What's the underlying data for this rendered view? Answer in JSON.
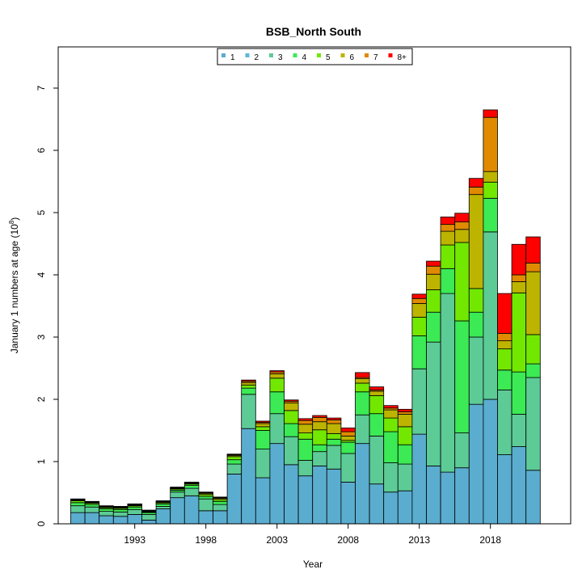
{
  "chart_data": {
    "type": "bar",
    "stacked": true,
    "title": "BSB_North South",
    "xlabel": "Year",
    "ylabel": "January 1 numbers at age (10",
    "ylabel_exponent": "8",
    "ylabel_suffix": ")",
    "ylim": [
      0,
      7.6
    ],
    "yticks": [
      0,
      1,
      2,
      3,
      4,
      5,
      6,
      7
    ],
    "xticks": [
      1993,
      1998,
      2003,
      2008,
      2013,
      2018
    ],
    "legend_position": "top",
    "x": [
      1989,
      1990,
      1991,
      1992,
      1993,
      1994,
      1995,
      1996,
      1997,
      1998,
      1999,
      2000,
      2001,
      2002,
      2003,
      2004,
      2005,
      2006,
      2007,
      2008,
      2009,
      2010,
      2011,
      2012,
      2013,
      2014,
      2015,
      2016,
      2017,
      2018,
      2019,
      2020,
      2021
    ],
    "series": [
      {
        "name": "1",
        "color": "#5AADCF",
        "values": [
          0.18,
          0.18,
          0.13,
          0.12,
          0.15,
          0.06,
          0.24,
          0.42,
          0.45,
          0.21,
          0.21,
          0.8,
          1.53,
          0.74,
          1.29,
          0.95,
          0.77,
          0.93,
          0.88,
          0.67,
          1.29,
          0.64,
          0.51,
          0.53,
          1.44,
          0.93,
          0.83,
          0.9,
          1.92,
          2.0,
          1.11,
          1.24,
          0.86
        ]
      },
      {
        "name": "2",
        "color": "#5FB8D6",
        "values": [
          0,
          0,
          0,
          0,
          0,
          0,
          0,
          0,
          0,
          0,
          0,
          0,
          0,
          0,
          0,
          0,
          0,
          0,
          0,
          0,
          0,
          0,
          0,
          0,
          0,
          0,
          0,
          0,
          0,
          0,
          0,
          0,
          0
        ]
      },
      {
        "name": "3",
        "color": "#5DCB96",
        "values": [
          0.11,
          0.09,
          0.07,
          0.07,
          0.08,
          0.09,
          0.04,
          0.09,
          0.12,
          0.19,
          0.1,
          0.16,
          0.55,
          0.46,
          0.48,
          0.45,
          0.25,
          0.23,
          0.38,
          0.46,
          0.46,
          0.77,
          0.47,
          0.43,
          1.05,
          1.99,
          2.87,
          0.56,
          1.08,
          2.69,
          1.04,
          0.52,
          1.49
        ]
      },
      {
        "name": "4",
        "color": "#3BEA55",
        "values": [
          0.05,
          0.04,
          0.04,
          0.04,
          0.04,
          0.03,
          0.04,
          0.03,
          0.05,
          0.04,
          0.05,
          0.07,
          0.1,
          0.3,
          0.35,
          0.21,
          0.34,
          0.11,
          0.1,
          0.18,
          0.37,
          0.36,
          0.5,
          0.31,
          0.53,
          0.48,
          0.4,
          1.8,
          0.4,
          0.54,
          0.32,
          0.68,
          0.22
        ]
      },
      {
        "name": "5",
        "color": "#72E800",
        "values": [
          0.03,
          0.02,
          0.02,
          0.02,
          0.02,
          0.01,
          0.02,
          0.02,
          0.02,
          0.03,
          0.03,
          0.05,
          0.05,
          0.06,
          0.22,
          0.21,
          0.1,
          0.24,
          0.09,
          0.03,
          0.14,
          0.29,
          0.22,
          0.29,
          0.3,
          0.36,
          0.38,
          1.26,
          0.38,
          0.26,
          0.34,
          1.27,
          0.47
        ]
      },
      {
        "name": "6",
        "color": "#BDB400",
        "values": [
          0.01,
          0.01,
          0.01,
          0.01,
          0.01,
          0.01,
          0.01,
          0.01,
          0.01,
          0.02,
          0.02,
          0.02,
          0.04,
          0.05,
          0.07,
          0.12,
          0.14,
          0.13,
          0.16,
          0.07,
          0.07,
          0.07,
          0.13,
          0.2,
          0.22,
          0.25,
          0.22,
          0.21,
          1.51,
          0.17,
          0.13,
          0.18,
          1.01
        ]
      },
      {
        "name": "7",
        "color": "#E08A00",
        "values": [
          0.01,
          0.01,
          0.01,
          0.01,
          0.01,
          0.01,
          0.01,
          0.01,
          0.01,
          0.01,
          0.01,
          0.01,
          0.02,
          0.02,
          0.03,
          0.03,
          0.06,
          0.07,
          0.06,
          0.07,
          0.02,
          0.02,
          0.03,
          0.04,
          0.08,
          0.13,
          0.11,
          0.12,
          0.12,
          0.87,
          0.12,
          0.11,
          0.14
        ]
      },
      {
        "name": "8+",
        "color": "#FF0000",
        "values": [
          0.01,
          0.01,
          0.01,
          0.01,
          0.01,
          0.01,
          0.01,
          0.01,
          0.01,
          0.01,
          0.01,
          0.01,
          0.02,
          0.02,
          0.02,
          0.02,
          0.03,
          0.03,
          0.03,
          0.06,
          0.08,
          0.05,
          0.04,
          0.04,
          0.07,
          0.08,
          0.12,
          0.14,
          0.14,
          0.12,
          0.64,
          0.49,
          0.42
        ]
      }
    ]
  }
}
